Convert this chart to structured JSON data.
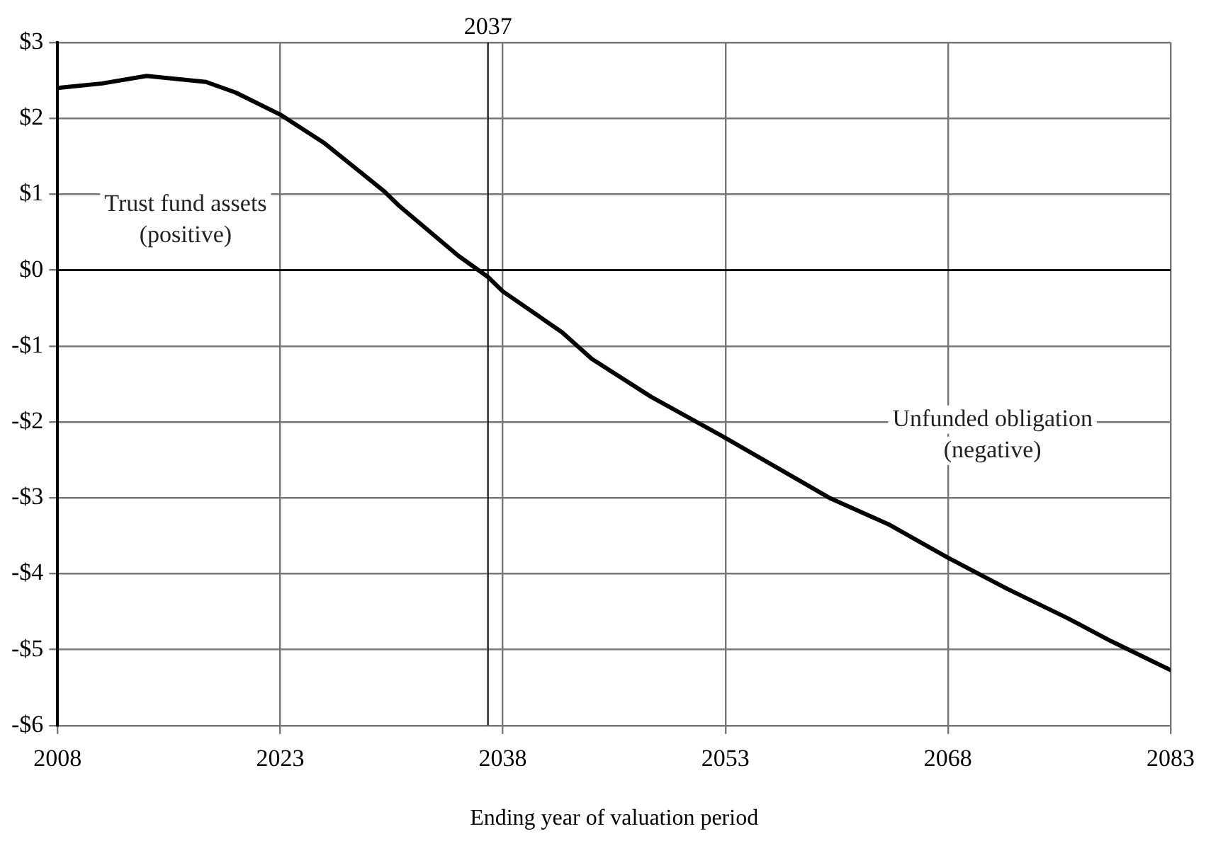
{
  "chart_data": {
    "type": "line",
    "xlabel": "Ending year of valuation period",
    "x": [
      2008,
      2011,
      2014,
      2018,
      2020,
      2023,
      2026,
      2030,
      2031,
      2035,
      2037,
      2038,
      2042,
      2044,
      2048,
      2053,
      2060,
      2064,
      2068,
      2072,
      2076,
      2079,
      2083
    ],
    "series": [
      {
        "color": "#000000",
        "values": [
          2.4,
          2.46,
          2.56,
          2.48,
          2.34,
          2.05,
          1.67,
          1.04,
          0.85,
          0.19,
          -0.09,
          -0.28,
          -0.82,
          -1.17,
          -1.67,
          -2.21,
          -3.0,
          -3.35,
          -3.79,
          -4.2,
          -4.58,
          -4.89,
          -5.27
        ]
      }
    ],
    "xlim": [
      2008,
      2083
    ],
    "xticks": [
      2008,
      2023,
      2038,
      2053,
      2068,
      2083
    ],
    "ylim": [
      -6,
      3
    ],
    "yticks": [
      {
        "value": 3,
        "label": "$3"
      },
      {
        "value": 2,
        "label": "$2"
      },
      {
        "value": 1,
        "label": "$1"
      },
      {
        "value": 0,
        "label": "$0"
      },
      {
        "value": -1,
        "label": "-$1"
      },
      {
        "value": -2,
        "label": "-$2"
      },
      {
        "value": -3,
        "label": "-$3"
      },
      {
        "value": -4,
        "label": "-$4"
      },
      {
        "value": -5,
        "label": "-$5"
      },
      {
        "value": -6,
        "label": "-$6"
      }
    ],
    "ref_lines": [
      {
        "axis": "x",
        "value": 2037,
        "label": "2037",
        "color": "#333333",
        "line_style": "solid"
      },
      {
        "axis": "y",
        "value": 0,
        "color": "#000000",
        "line_style": "solid"
      }
    ],
    "annotations": [
      "Trust fund assets\n(positive)",
      "Unfunded obligation\n(negative)"
    ],
    "grid": true,
    "legend": false,
    "marker": "none",
    "line_style": "solid"
  }
}
